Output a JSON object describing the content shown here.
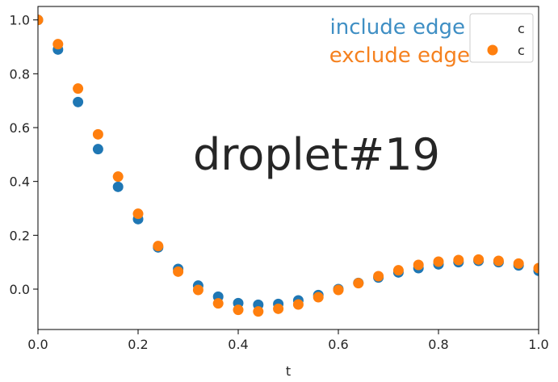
{
  "chart_data": {
    "type": "scatter",
    "xlabel": "t",
    "ylabel": "",
    "xlim": [
      0.0,
      1.0
    ],
    "ylim": [
      -0.15,
      1.05
    ],
    "xticks": [
      "0.0",
      "0.2",
      "0.4",
      "0.6",
      "0.8",
      "1.0"
    ],
    "yticks": [
      "0.0",
      "0.2",
      "0.4",
      "0.6",
      "0.8",
      "1.0"
    ],
    "grid": false,
    "legend_position": "top-right",
    "x": [
      0.0,
      0.04,
      0.08,
      0.12,
      0.16,
      0.2,
      0.24,
      0.28,
      0.32,
      0.36,
      0.4,
      0.44,
      0.48,
      0.52,
      0.56,
      0.6,
      0.64,
      0.68,
      0.72,
      0.76,
      0.8,
      0.84,
      0.88,
      0.92,
      0.96,
      1.0
    ],
    "series": [
      {
        "name": "c",
        "color": "#1f77b4",
        "values": [
          1.0,
          0.89,
          0.695,
          0.52,
          0.38,
          0.26,
          0.155,
          0.075,
          0.013,
          -0.028,
          -0.052,
          -0.058,
          -0.055,
          -0.042,
          -0.022,
          0.0,
          0.023,
          0.043,
          0.062,
          0.078,
          0.092,
          0.1,
          0.105,
          0.1,
          0.088,
          0.068
        ]
      },
      {
        "name": "c",
        "color": "#ff7f0e",
        "values": [
          1.0,
          0.91,
          0.745,
          0.575,
          0.418,
          0.28,
          0.16,
          0.065,
          -0.003,
          -0.053,
          -0.077,
          -0.083,
          -0.073,
          -0.057,
          -0.03,
          -0.003,
          0.022,
          0.048,
          0.07,
          0.09,
          0.102,
          0.108,
          0.11,
          0.105,
          0.095,
          0.078
        ]
      }
    ],
    "annotations": {
      "title_text": "droplet#19",
      "include_label": "include edge",
      "include_color": "#3f8fc4",
      "exclude_label": "exclude edge",
      "exclude_color": "#f5811f"
    }
  }
}
